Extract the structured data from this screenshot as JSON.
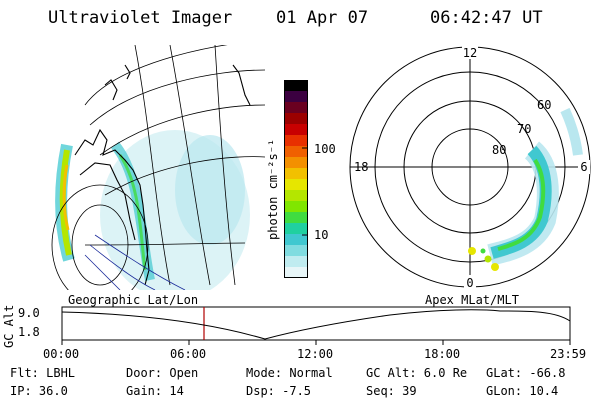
{
  "header": {
    "title": "Ultraviolet Imager",
    "date": "01 Apr 07",
    "time": "06:42:47 UT"
  },
  "colorbar": {
    "unit_label": "photon cm⁻²s⁻¹",
    "ticks": [
      "100",
      "10"
    ],
    "colors": [
      "#000000",
      "#3b0040",
      "#6a0020",
      "#9b0000",
      "#c80000",
      "#e83000",
      "#f06000",
      "#f39000",
      "#f2c000",
      "#e6e600",
      "#b4e600",
      "#80e600",
      "#40dc40",
      "#20d0a0",
      "#40c8d0",
      "#80dce0",
      "#c0ecf0",
      "#e8f6f8"
    ]
  },
  "polar_plot": {
    "mlt_labels": [
      "12",
      "18",
      "6",
      "0"
    ],
    "lat_labels": [
      "60",
      "70",
      "80"
    ]
  },
  "bottom_labels": {
    "left": "Geographic Lat/Lon",
    "right": "Apex MLat/MLT"
  },
  "altitude_plot": {
    "axis_label": "GC Alt",
    "y_ticks": [
      "9.0",
      "1.8"
    ],
    "x_ticks": [
      "00:00",
      "06:00",
      "12:00",
      "18:00",
      "23:59"
    ],
    "marker_hour": 6.71
  },
  "status": {
    "flt": "Flt: LBHL",
    "ip": "IP: 36.0",
    "door": "Door: Open",
    "gain": "Gain: 14",
    "mode": "Mode: Normal",
    "dsp": "Dsp:   -7.5",
    "gcalt": "GC Alt: 6.0 Re",
    "seq": "Seq: 39",
    "glat": "GLat: -66.8",
    "glon": "GLon:  10.4"
  }
}
